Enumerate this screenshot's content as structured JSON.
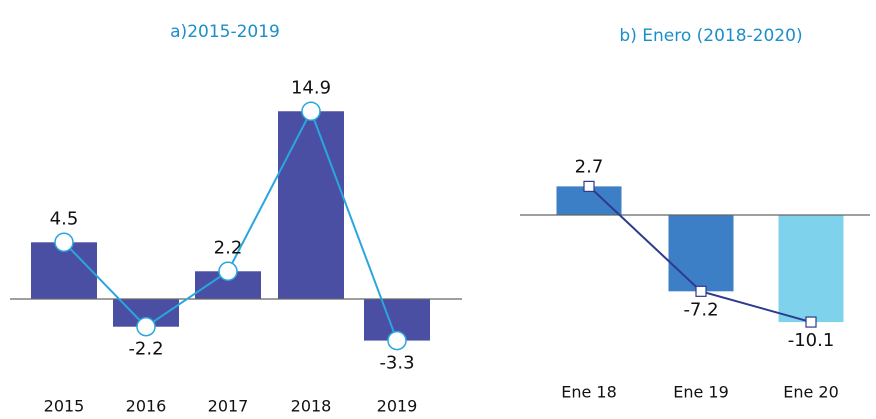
{
  "chart_data": [
    {
      "type": "bar-line",
      "title": "a)2015-2019",
      "categories": [
        "2015",
        "2016",
        "2017",
        "2018",
        "2019"
      ],
      "values": [
        4.5,
        -2.2,
        2.2,
        14.9,
        -3.3
      ],
      "colors": [
        "#4a4fa3",
        "#4a4fa3",
        "#4a4fa3",
        "#4a4fa3",
        "#4a4fa3"
      ],
      "line_color": "#2aa6df",
      "marker": "circle"
    },
    {
      "type": "bar-line",
      "title": "b) Enero (2018-2020)",
      "categories": [
        "Ene 18",
        "Ene 19",
        "Ene 20"
      ],
      "values": [
        2.7,
        -7.2,
        -10.1
      ],
      "colors": [
        "#3d7fc6",
        "#3d7fc6",
        "#7fd2ec"
      ],
      "line_color": "#2d3a8f",
      "marker": "square"
    }
  ]
}
